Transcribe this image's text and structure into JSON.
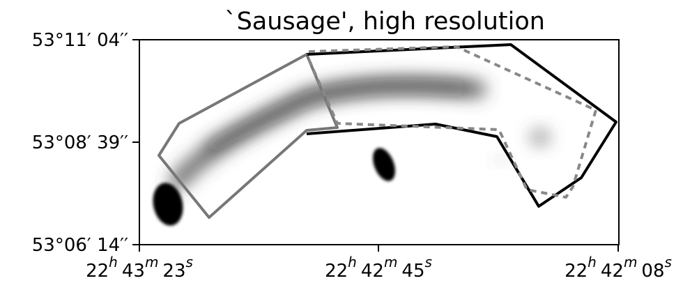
{
  "chart_data": {
    "type": "image",
    "title": "`Sausage', high resolution",
    "y_ticks": [
      {
        "label": "53°11′ 04′′"
      },
      {
        "label": "53°08′ 39′′"
      },
      {
        "label": "53°06′ 14′′"
      }
    ],
    "x_ticks": [
      {
        "h": "22",
        "m": "43",
        "s": "23"
      },
      {
        "h": "22",
        "m": "42",
        "s": "45"
      },
      {
        "h": "22",
        "m": "42",
        "s": "08"
      }
    ],
    "regions": [
      {
        "name": "gray-solid-region",
        "style": "solid",
        "color": "#777777"
      },
      {
        "name": "black-solid-region",
        "style": "solid",
        "color": "#000000"
      },
      {
        "name": "dashed-region",
        "style": "dashed",
        "color": "#888888"
      }
    ]
  }
}
